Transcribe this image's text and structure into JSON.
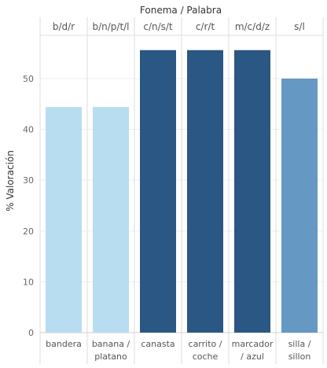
{
  "chart_data": {
    "type": "bar",
    "title": "Fonema / Palabra",
    "ylabel": "% Valoración",
    "xlabel": "",
    "ylim": [
      0,
      58.5
    ],
    "yticks": [
      0,
      10,
      20,
      30,
      40,
      50
    ],
    "grid": true,
    "categories": [
      {
        "top": "b/d/r",
        "bottom": [
          "bandera"
        ]
      },
      {
        "top": "b/n/p/t/l",
        "bottom": [
          "banana /",
          "platano"
        ]
      },
      {
        "top": "c/n/s/t",
        "bottom": [
          "canasta"
        ]
      },
      {
        "top": "c/r/t",
        "bottom": [
          "carrito /",
          "coche"
        ]
      },
      {
        "top": "m/c/d/z",
        "bottom": [
          "marcador",
          "/ azul"
        ]
      },
      {
        "top": "s/l",
        "bottom": [
          "silla /",
          "sillon"
        ]
      }
    ],
    "values": [
      44.4,
      44.4,
      55.6,
      55.6,
      55.6,
      50.0
    ],
    "colors": [
      "#b8dcf0",
      "#b8dcf0",
      "#2a5783",
      "#2a5783",
      "#2a5783",
      "#6598c2"
    ]
  }
}
